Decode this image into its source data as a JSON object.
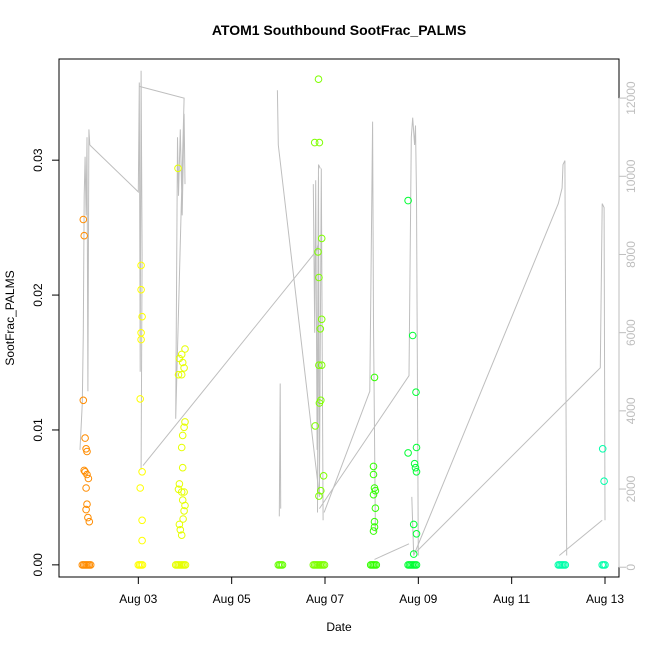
{
  "chart_data": {
    "type": "scatter",
    "title": "ATOM1 Southbound SootFrac_PALMS",
    "xlabel": "Date",
    "ylabel": "SootFrac_PALMS",
    "y_right_label": "",
    "x_tick_labels": [
      "Aug 03",
      "Aug 05",
      "Aug 07",
      "Aug 09",
      "Aug 11",
      "Aug 13"
    ],
    "x_tick_values": [
      3,
      5,
      7,
      9,
      11,
      13
    ],
    "xlim": [
      1.3,
      13.3
    ],
    "y_ticks": [
      0.0,
      0.01,
      0.02,
      0.03
    ],
    "y_tick_labels": [
      "0.00",
      "0.01",
      "0.02",
      "0.03"
    ],
    "ylim": [
      -0.0009,
      0.0375
    ],
    "y_right_ticks": [
      0,
      2000,
      4000,
      6000,
      8000,
      10000,
      12000
    ],
    "y_right_tick_labels": [
      "0",
      "2000",
      "4000",
      "6000",
      "8000",
      "10000",
      "12000"
    ],
    "y_right_lim": [
      -250,
      13000
    ],
    "grid": false,
    "colors": {
      "axis": "#000000",
      "right_axis": "#bebebe",
      "altitude_line": "#bebebe"
    },
    "series": [
      {
        "color": "#ff8c00",
        "points": [
          [
            1.82,
            0.0256
          ],
          [
            1.84,
            0.0244
          ],
          [
            1.82,
            0.0122
          ],
          [
            1.86,
            0.0094
          ],
          [
            1.88,
            0.0086
          ],
          [
            1.9,
            0.0084
          ],
          [
            1.84,
            0.007
          ],
          [
            1.86,
            0.0069
          ],
          [
            1.9,
            0.0067
          ],
          [
            1.93,
            0.0064
          ],
          [
            1.88,
            0.0057
          ],
          [
            1.9,
            0.0045
          ],
          [
            1.88,
            0.0041
          ],
          [
            1.92,
            0.0035
          ],
          [
            1.95,
            0.0032
          ],
          [
            1.8,
            0.0
          ],
          [
            1.83,
            0.0
          ],
          [
            1.86,
            0.0
          ],
          [
            1.89,
            0.0
          ],
          [
            1.92,
            0.0
          ],
          [
            1.95,
            0.0
          ],
          [
            1.98,
            0.0
          ]
        ]
      },
      {
        "color": "#ffff00",
        "points": [
          [
            3.06,
            0.0222
          ],
          [
            3.06,
            0.0204
          ],
          [
            3.08,
            0.0184
          ],
          [
            3.06,
            0.0172
          ],
          [
            3.06,
            0.0167
          ],
          [
            3.04,
            0.0123
          ],
          [
            3.08,
            0.0069
          ],
          [
            3.04,
            0.0057
          ],
          [
            3.08,
            0.0033
          ],
          [
            3.08,
            0.0018
          ],
          [
            3.0,
            0.0
          ],
          [
            3.03,
            0.0
          ],
          [
            3.06,
            0.0
          ],
          [
            3.09,
            0.0
          ]
        ]
      },
      {
        "color": "#e6ff00",
        "points": [
          [
            3.85,
            0.0294
          ],
          [
            4.0,
            0.016
          ],
          [
            3.93,
            0.0156
          ],
          [
            3.88,
            0.0153
          ],
          [
            3.95,
            0.015
          ],
          [
            3.98,
            0.0146
          ],
          [
            3.86,
            0.0141
          ],
          [
            3.93,
            0.0141
          ],
          [
            4.0,
            0.0106
          ],
          [
            3.98,
            0.0102
          ],
          [
            3.95,
            0.0096
          ],
          [
            3.93,
            0.0087
          ],
          [
            3.95,
            0.0072
          ],
          [
            3.88,
            0.006
          ],
          [
            3.86,
            0.0056
          ],
          [
            3.93,
            0.0054
          ],
          [
            3.98,
            0.0054
          ],
          [
            3.95,
            0.0048
          ],
          [
            4.0,
            0.0044
          ],
          [
            3.98,
            0.004
          ],
          [
            3.96,
            0.0034
          ],
          [
            3.88,
            0.003
          ],
          [
            3.9,
            0.0026
          ],
          [
            3.93,
            0.0022
          ],
          [
            3.8,
            0.0
          ],
          [
            3.83,
            0.0
          ],
          [
            3.86,
            0.0
          ],
          [
            3.89,
            0.0
          ],
          [
            3.92,
            0.0
          ],
          [
            3.95,
            0.0
          ],
          [
            3.98,
            0.0
          ],
          [
            4.01,
            0.0
          ]
        ]
      },
      {
        "color": "#66ff00",
        "points": [
          [
            6.0,
            0.0
          ],
          [
            6.03,
            0.0
          ],
          [
            6.06,
            0.0
          ],
          [
            6.09,
            0.0
          ]
        ]
      },
      {
        "color": "#7fff00",
        "points": [
          [
            6.86,
            0.036
          ],
          [
            6.78,
            0.0313
          ],
          [
            6.88,
            0.0313
          ],
          [
            6.93,
            0.0242
          ],
          [
            6.85,
            0.0232
          ],
          [
            6.87,
            0.0213
          ],
          [
            6.93,
            0.0182
          ],
          [
            6.9,
            0.0175
          ],
          [
            6.87,
            0.0148
          ],
          [
            6.93,
            0.0148
          ],
          [
            6.91,
            0.0122
          ],
          [
            6.88,
            0.012
          ],
          [
            6.79,
            0.0103
          ],
          [
            6.97,
            0.0066
          ],
          [
            6.91,
            0.0055
          ],
          [
            6.87,
            0.0051
          ],
          [
            6.75,
            0.0
          ],
          [
            6.78,
            0.0
          ],
          [
            6.81,
            0.0
          ],
          [
            6.84,
            0.0
          ],
          [
            6.87,
            0.0
          ],
          [
            6.9,
            0.0
          ],
          [
            6.93,
            0.0
          ],
          [
            6.96,
            0.0
          ],
          [
            6.99,
            0.0
          ]
        ]
      },
      {
        "color": "#33ff00",
        "points": [
          [
            8.06,
            0.0139
          ],
          [
            8.04,
            0.0073
          ],
          [
            8.04,
            0.0067
          ],
          [
            8.06,
            0.0057
          ],
          [
            8.08,
            0.0055
          ],
          [
            8.04,
            0.0052
          ],
          [
            8.08,
            0.0042
          ],
          [
            8.06,
            0.0032
          ],
          [
            8.06,
            0.0028
          ],
          [
            8.04,
            0.0025
          ],
          [
            7.98,
            0.0
          ],
          [
            8.01,
            0.0
          ],
          [
            8.04,
            0.0
          ],
          [
            8.07,
            0.0
          ],
          [
            8.1,
            0.0
          ]
        ]
      },
      {
        "color": "#00ff33",
        "points": [
          [
            8.78,
            0.027
          ],
          [
            8.88,
            0.017
          ],
          [
            8.95,
            0.0128
          ],
          [
            8.96,
            0.0087
          ],
          [
            8.78,
            0.0083
          ],
          [
            8.92,
            0.0075
          ],
          [
            8.94,
            0.0072
          ],
          [
            8.96,
            0.0069
          ],
          [
            8.9,
            0.003
          ],
          [
            8.96,
            0.0023
          ],
          [
            8.9,
            0.0008
          ],
          [
            8.78,
            0.0
          ],
          [
            8.81,
            0.0
          ],
          [
            8.84,
            0.0
          ],
          [
            8.87,
            0.0
          ],
          [
            8.9,
            0.0
          ],
          [
            8.93,
            0.0
          ],
          [
            8.96,
            0.0
          ]
        ]
      },
      {
        "color": "#00ffaa",
        "points": [
          [
            12.0,
            0.0
          ],
          [
            12.03,
            0.0
          ],
          [
            12.06,
            0.0
          ],
          [
            12.09,
            0.0
          ],
          [
            12.12,
            0.0
          ],
          [
            12.15,
            0.0
          ],
          [
            12.95,
            0.0086
          ],
          [
            12.98,
            0.0062
          ],
          [
            12.94,
            0.0
          ],
          [
            12.97,
            0.0
          ],
          [
            13.0,
            0.0
          ]
        ]
      }
    ],
    "altitude_series": {
      "segments": [
        [
          [
            1.75,
            3000
          ],
          [
            1.8,
            4200
          ],
          [
            1.82,
            6000
          ],
          [
            1.84,
            9500
          ],
          [
            1.86,
            10500
          ],
          [
            1.88,
            9000
          ],
          [
            1.9,
            11000
          ],
          [
            1.92,
            4500
          ],
          [
            1.94,
            11200
          ],
          [
            1.96,
            10800
          ]
        ],
        [
          [
            1.96,
            10800
          ],
          [
            3.0,
            9600
          ],
          [
            3.02,
            12400
          ],
          [
            3.04,
            5000
          ],
          [
            3.06,
            12700
          ],
          [
            3.08,
            8000
          ],
          [
            3.06,
            2500
          ]
        ],
        [
          [
            3.02,
            12300
          ],
          [
            3.98,
            12000
          ],
          [
            3.8,
            3800
          ],
          [
            3.84,
            11000
          ],
          [
            3.86,
            9500
          ],
          [
            3.9,
            11200
          ],
          [
            3.94,
            9000
          ],
          [
            3.98,
            11600
          ],
          [
            4.0,
            9800
          ]
        ],
        [
          [
            3.1,
            2600
          ],
          [
            6.82,
            8100
          ],
          [
            6.86,
            8300
          ],
          [
            6.84,
            1400
          ],
          [
            6.86,
            10000
          ],
          [
            6.88,
            2000
          ]
        ],
        [
          [
            5.98,
            12200
          ],
          [
            6.0,
            10800
          ],
          [
            6.88,
            1800
          ],
          [
            6.92,
            10200
          ],
          [
            6.96,
            1200
          ]
        ],
        [
          [
            6.02,
            1300
          ],
          [
            6.04,
            4700
          ],
          [
            6.05,
            1500
          ]
        ],
        [
          [
            6.75,
            9800
          ],
          [
            6.78,
            6000
          ],
          [
            6.8,
            9900
          ],
          [
            6.83,
            3000
          ],
          [
            6.86,
            10300
          ],
          [
            6.9,
            10200
          ]
        ],
        [
          [
            6.98,
            1400
          ],
          [
            7.96,
            4500
          ],
          [
            8.02,
            11400
          ],
          [
            8.04,
            6200
          ],
          [
            8.08,
            900
          ]
        ],
        [
          [
            6.88,
            1500
          ],
          [
            8.8,
            4900
          ],
          [
            8.85,
            11000
          ],
          [
            8.88,
            11500
          ],
          [
            8.92,
            10800
          ],
          [
            8.94,
            11300
          ],
          [
            8.96,
            9500
          ],
          [
            9.0,
            300
          ]
        ],
        [
          [
            8.06,
            200
          ],
          [
            8.8,
            600
          ]
        ],
        [
          [
            8.86,
            1800
          ],
          [
            8.9,
            300
          ],
          [
            12.0,
            9300
          ],
          [
            12.04,
            9500
          ],
          [
            12.08,
            9700
          ],
          [
            12.1,
            10300
          ],
          [
            12.14,
            10400
          ],
          [
            12.18,
            300
          ]
        ],
        [
          [
            8.96,
            400
          ],
          [
            12.9,
            5100
          ],
          [
            12.94,
            9300
          ],
          [
            12.98,
            9200
          ],
          [
            13.0,
            1200
          ]
        ],
        [
          [
            12.02,
            300
          ],
          [
            12.94,
            1200
          ]
        ]
      ]
    }
  }
}
